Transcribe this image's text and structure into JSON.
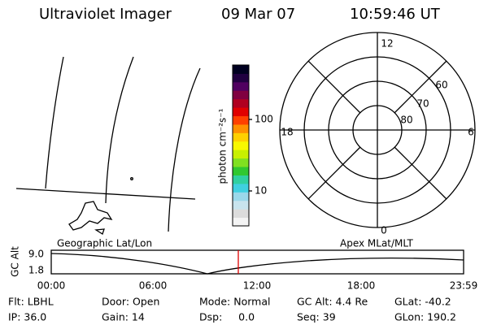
{
  "header": {
    "title": "Ultraviolet Imager",
    "date": "09 Mar 07",
    "time": "10:59:46 UT"
  },
  "colorbar": {
    "label": "photon cm⁻²s⁻¹",
    "ticks": [
      "100",
      "10"
    ]
  },
  "polar": {
    "mlt_labels": [
      "12",
      "18",
      "6",
      "0"
    ],
    "mlat_labels": [
      "60",
      "70",
      "80"
    ]
  },
  "altitude_plot": {
    "ylabel": "GC Alt",
    "yticks": [
      "9.0",
      "1.8"
    ],
    "left_label": "Geographic Lat/Lon",
    "right_label": "Apex MLat/MLT",
    "xticks": [
      "00:00",
      "06:00",
      "12:00",
      "18:00",
      "23:59"
    ]
  },
  "status": {
    "rows": [
      [
        "Flt: LBHL",
        "Door: Open",
        "Mode: Normal",
        "GC Alt: 4.4 Re",
        "GLat: -40.2"
      ],
      [
        "IP: 36.0",
        "Gain: 14",
        "Dsp:     0.0",
        "Seq: 39",
        "GLon: 190.2"
      ]
    ]
  }
}
